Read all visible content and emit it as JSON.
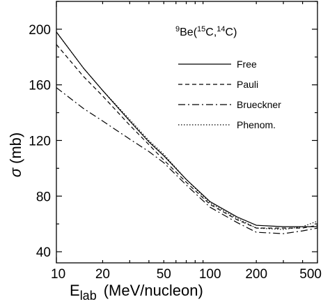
{
  "chart_data": {
    "type": "line",
    "title": {
      "target_sup": "9",
      "target": "Be(",
      "proj_sup": "15",
      "proj": "C,",
      "frag_sup": "14",
      "frag": "C)"
    },
    "xlabel": {
      "main": "E",
      "sub": "lab",
      "units": "(MeV/nucleon)"
    },
    "ylabel": {
      "symbol": "σ",
      "units": "(mb)"
    },
    "xscale": "log",
    "xlim": [
      10,
      500
    ],
    "ylim": [
      32,
      220
    ],
    "xticks": [
      10,
      20,
      50,
      100,
      200,
      500
    ],
    "yticks": [
      40,
      80,
      120,
      160,
      200
    ],
    "legend_position": "top-right",
    "series": [
      {
        "name": "Free",
        "style": "solid",
        "x": [
          10,
          15,
          20,
          30,
          40,
          50,
          70,
          100,
          150,
          200,
          300,
          400,
          500
        ],
        "y": [
          198,
          172,
          156,
          134,
          119,
          109,
          92,
          76,
          65,
          59,
          58,
          58,
          58
        ]
      },
      {
        "name": "Pauli",
        "style": "dashed",
        "x": [
          10,
          15,
          20,
          30,
          40,
          50,
          70,
          100,
          150,
          200,
          300,
          400,
          500
        ],
        "y": [
          189,
          166,
          152,
          131,
          117,
          106,
          90,
          74,
          63,
          57,
          57,
          57,
          59
        ]
      },
      {
        "name": "Brueckner",
        "style": "dashdot",
        "x": [
          10,
          15,
          20,
          30,
          40,
          50,
          70,
          100,
          150,
          200,
          300,
          400,
          500
        ],
        "y": [
          158,
          143,
          134,
          121,
          112,
          104,
          88,
          72,
          61,
          54,
          53,
          55,
          57
        ]
      },
      {
        "name": "Phenom.",
        "style": "dotted",
        "x": [
          10,
          15,
          20,
          30,
          40,
          50,
          70,
          100,
          150,
          200,
          300,
          400,
          500
        ],
        "y": [
          198,
          172,
          156,
          135,
          120,
          110,
          92,
          75,
          64,
          57,
          56,
          58,
          62
        ]
      }
    ]
  }
}
